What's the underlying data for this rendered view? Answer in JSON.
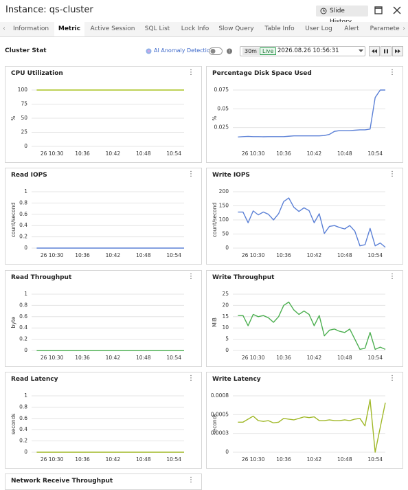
{
  "header": {
    "title": "Instance: qs-cluster",
    "slide_history": "Slide History"
  },
  "tabs": [
    "Information",
    "Metric",
    "Active Session",
    "SQL List",
    "Lock Info",
    "Slow Query",
    "Table Info",
    "User Log",
    "Alert",
    "Parameter"
  ],
  "active_tab": 1,
  "toolbar": {
    "section": "Cluster Stat",
    "ai_anomaly": "AI Anomaly Detection",
    "range": "30m",
    "live": "Live",
    "timestamp": "2026.08.26 10:56:31"
  },
  "chart_data": [
    {
      "type": "line",
      "title": "CPU Utilization",
      "y_label": "%",
      "color": "#a9c21f",
      "grid": true,
      "x": [
        "10:27",
        "10:28",
        "10:29",
        "10:30",
        "10:31",
        "10:32",
        "10:33",
        "10:34",
        "10:35",
        "10:36",
        "10:37",
        "10:38",
        "10:39",
        "10:40",
        "10:41",
        "10:42",
        "10:43",
        "10:44",
        "10:45",
        "10:46",
        "10:47",
        "10:48",
        "10:49",
        "10:50",
        "10:51",
        "10:52",
        "10:53",
        "10:54",
        "10:55",
        "10:56"
      ],
      "values": [
        100,
        100,
        100,
        100,
        100,
        100,
        100,
        100,
        100,
        100,
        100,
        100,
        100,
        100,
        100,
        100,
        100,
        100,
        100,
        100,
        100,
        100,
        100,
        100,
        100,
        100,
        100,
        100,
        100,
        100
      ],
      "xlim": [
        "10:26",
        "10:56"
      ],
      "xticks": [
        {
          "value": "10:30",
          "label": "26 10:30"
        },
        "10:36",
        "10:42",
        "10:48",
        "10:54"
      ],
      "ylim": [
        0,
        100
      ],
      "yticks": [
        0,
        25,
        50,
        75,
        100
      ]
    },
    {
      "type": "line",
      "title": "Percentage Disk Space Used",
      "y_label": "%",
      "color": "#5b80d6",
      "grid": true,
      "x": [
        "10:27",
        "10:28",
        "10:29",
        "10:30",
        "10:31",
        "10:32",
        "10:33",
        "10:34",
        "10:35",
        "10:36",
        "10:37",
        "10:38",
        "10:39",
        "10:40",
        "10:41",
        "10:42",
        "10:43",
        "10:44",
        "10:45",
        "10:46",
        "10:47",
        "10:48",
        "10:49",
        "10:50",
        "10:51",
        "10:52",
        "10:53",
        "10:54",
        "10:55",
        "10:56"
      ],
      "values": [
        0.0125,
        0.013,
        0.0133,
        0.013,
        0.013,
        0.0128,
        0.013,
        0.013,
        0.013,
        0.013,
        0.0135,
        0.014,
        0.014,
        0.014,
        0.014,
        0.014,
        0.014,
        0.0145,
        0.016,
        0.02,
        0.021,
        0.021,
        0.021,
        0.0215,
        0.022,
        0.022,
        0.023,
        0.065,
        0.075,
        0.075
      ],
      "xlim": [
        "10:26",
        "10:56"
      ],
      "xticks": [
        {
          "value": "10:30",
          "label": "26 10:30"
        },
        "10:36",
        "10:42",
        "10:48",
        "10:54"
      ],
      "ylim": [
        0,
        0.075
      ],
      "yticks": [
        0.025,
        0.05,
        0.075
      ]
    },
    {
      "type": "line",
      "title": "Read IOPS",
      "y_label": "count/second",
      "color": "#5b80d6",
      "grid": true,
      "x": [
        "10:27",
        "10:28",
        "10:29",
        "10:30",
        "10:31",
        "10:32",
        "10:33",
        "10:34",
        "10:35",
        "10:36",
        "10:37",
        "10:38",
        "10:39",
        "10:40",
        "10:41",
        "10:42",
        "10:43",
        "10:44",
        "10:45",
        "10:46",
        "10:47",
        "10:48",
        "10:49",
        "10:50",
        "10:51",
        "10:52",
        "10:53",
        "10:54",
        "10:55",
        "10:56"
      ],
      "values": [
        0,
        0,
        0,
        0,
        0,
        0,
        0,
        0,
        0,
        0,
        0,
        0,
        0,
        0,
        0,
        0,
        0,
        0,
        0,
        0,
        0,
        0,
        0,
        0,
        0,
        0,
        0,
        0,
        0,
        0
      ],
      "xlim": [
        "10:26",
        "10:56"
      ],
      "xticks": [
        {
          "value": "10:30",
          "label": "26 10:30"
        },
        "10:36",
        "10:42",
        "10:48",
        "10:54"
      ],
      "ylim": [
        0,
        1
      ],
      "yticks": [
        0,
        0.2,
        0.4,
        0.6,
        0.8,
        1
      ]
    },
    {
      "type": "line",
      "title": "Write IOPS",
      "y_label": "count/second",
      "color": "#5b80d6",
      "grid": true,
      "x": [
        "10:27",
        "10:28",
        "10:29",
        "10:30",
        "10:31",
        "10:32",
        "10:33",
        "10:34",
        "10:35",
        "10:36",
        "10:37",
        "10:38",
        "10:39",
        "10:40",
        "10:41",
        "10:42",
        "10:43",
        "10:44",
        "10:45",
        "10:46",
        "10:47",
        "10:48",
        "10:49",
        "10:50",
        "10:51",
        "10:52",
        "10:53",
        "10:54",
        "10:55",
        "10:56"
      ],
      "values": [
        128,
        128,
        90,
        132,
        118,
        128,
        120,
        100,
        122,
        165,
        178,
        145,
        130,
        143,
        133,
        90,
        122,
        52,
        77,
        80,
        73,
        68,
        80,
        60,
        8,
        12,
        70,
        8,
        18,
        3
      ],
      "xlim": [
        "10:26",
        "10:56"
      ],
      "xticks": [
        {
          "value": "10:30",
          "label": "26 10:30"
        },
        "10:36",
        "10:42",
        "10:48",
        "10:54"
      ],
      "ylim": [
        0,
        200
      ],
      "yticks": [
        0,
        50,
        100,
        150,
        200
      ]
    },
    {
      "type": "line",
      "title": "Read Throughput",
      "y_label": "byte",
      "color": "#4caf50",
      "grid": true,
      "x": [
        "10:27",
        "10:28",
        "10:29",
        "10:30",
        "10:31",
        "10:32",
        "10:33",
        "10:34",
        "10:35",
        "10:36",
        "10:37",
        "10:38",
        "10:39",
        "10:40",
        "10:41",
        "10:42",
        "10:43",
        "10:44",
        "10:45",
        "10:46",
        "10:47",
        "10:48",
        "10:49",
        "10:50",
        "10:51",
        "10:52",
        "10:53",
        "10:54",
        "10:55",
        "10:56"
      ],
      "values": [
        0,
        0,
        0,
        0,
        0,
        0,
        0,
        0,
        0,
        0,
        0,
        0,
        0,
        0,
        0,
        0,
        0,
        0,
        0,
        0,
        0,
        0,
        0,
        0,
        0,
        0,
        0,
        0,
        0,
        0
      ],
      "xlim": [
        "10:26",
        "10:56"
      ],
      "xticks": [
        {
          "value": "10:30",
          "label": "26 10:30"
        },
        "10:36",
        "10:42",
        "10:48",
        "10:54"
      ],
      "ylim": [
        0,
        1
      ],
      "yticks": [
        0,
        0.2,
        0.4,
        0.6,
        0.8,
        1
      ]
    },
    {
      "type": "line",
      "title": "Write Throughput",
      "y_label": "MiB",
      "color": "#4caf50",
      "grid": true,
      "x": [
        "10:27",
        "10:28",
        "10:29",
        "10:30",
        "10:31",
        "10:32",
        "10:33",
        "10:34",
        "10:35",
        "10:36",
        "10:37",
        "10:38",
        "10:39",
        "10:40",
        "10:41",
        "10:42",
        "10:43",
        "10:44",
        "10:45",
        "10:46",
        "10:47",
        "10:48",
        "10:49",
        "10:50",
        "10:51",
        "10:52",
        "10:53",
        "10:54",
        "10:55",
        "10:56"
      ],
      "values": [
        15.5,
        15.5,
        11,
        16,
        15,
        15.5,
        14.5,
        12.5,
        15,
        20,
        21.5,
        18,
        16,
        17.5,
        16,
        11,
        15.5,
        6.5,
        9,
        9.5,
        8.5,
        8,
        9.5,
        5,
        0.5,
        1,
        8,
        0.5,
        1.5,
        0.5
      ],
      "xlim": [
        "10:26",
        "10:56"
      ],
      "xticks": [
        {
          "value": "10:30",
          "label": "26 10:30"
        },
        "10:36",
        "10:42",
        "10:48",
        "10:54"
      ],
      "ylim": [
        0,
        25
      ],
      "yticks": [
        0,
        5,
        10,
        15,
        20,
        25
      ]
    },
    {
      "type": "line",
      "title": "Read Latency",
      "y_label": "seconds",
      "color": "#a0b827",
      "grid": true,
      "x": [
        "10:27",
        "10:28",
        "10:29",
        "10:30",
        "10:31",
        "10:32",
        "10:33",
        "10:34",
        "10:35",
        "10:36",
        "10:37",
        "10:38",
        "10:39",
        "10:40",
        "10:41",
        "10:42",
        "10:43",
        "10:44",
        "10:45",
        "10:46",
        "10:47",
        "10:48",
        "10:49",
        "10:50",
        "10:51",
        "10:52",
        "10:53",
        "10:54",
        "10:55",
        "10:56"
      ],
      "values": [
        0,
        0,
        0,
        0,
        0,
        0,
        0,
        0,
        0,
        0,
        0,
        0,
        0,
        0,
        0,
        0,
        0,
        0,
        0,
        0,
        0,
        0,
        0,
        0,
        0,
        0,
        0,
        0,
        0,
        0
      ],
      "xlim": [
        "10:26",
        "10:56"
      ],
      "xticks": [
        {
          "value": "10:30",
          "label": "26 10:30"
        },
        "10:36",
        "10:42",
        "10:48",
        "10:54"
      ],
      "ylim": [
        0,
        1
      ],
      "yticks": [
        0,
        0.2,
        0.4,
        0.6,
        0.8,
        1
      ]
    },
    {
      "type": "line",
      "title": "Write Latency",
      "y_label": "seconds",
      "color": "#a0b827",
      "grid": true,
      "x": [
        "10:27",
        "10:28",
        "10:29",
        "10:30",
        "10:31",
        "10:32",
        "10:33",
        "10:34",
        "10:35",
        "10:36",
        "10:37",
        "10:38",
        "10:39",
        "10:40",
        "10:41",
        "10:42",
        "10:43",
        "10:44",
        "10:45",
        "10:46",
        "10:47",
        "10:48",
        "10:49",
        "10:50",
        "10:51",
        "10:52",
        "10:53",
        "10:54",
        "10:55",
        "10:56"
      ],
      "values": [
        0.0004,
        0.0004,
        0.00044,
        0.00048,
        0.00042,
        0.00041,
        0.00042,
        0.00039,
        0.0004,
        0.00045,
        0.00044,
        0.00043,
        0.00045,
        0.00047,
        0.00046,
        0.00047,
        0.00042,
        0.00042,
        0.00043,
        0.00042,
        0.00042,
        0.00043,
        0.00042,
        0.00044,
        0.00045,
        0.00035,
        0.0007,
        0,
        0.00033,
        0.00066
      ],
      "xlim": [
        "10:26",
        "10:56"
      ],
      "xticks": [
        {
          "value": "10:30",
          "label": "26 10:30"
        },
        "10:36",
        "10:42",
        "10:48",
        "10:54"
      ],
      "ylim": [
        0,
        0.00075
      ],
      "yticks": [
        0,
        {
          "value": 0.00025,
          "label": "0.0003"
        },
        0.0005,
        {
          "value": 0.00075,
          "label": "0.0008"
        }
      ]
    },
    {
      "type": "line",
      "title": "Network Receive Throughput"
    }
  ]
}
